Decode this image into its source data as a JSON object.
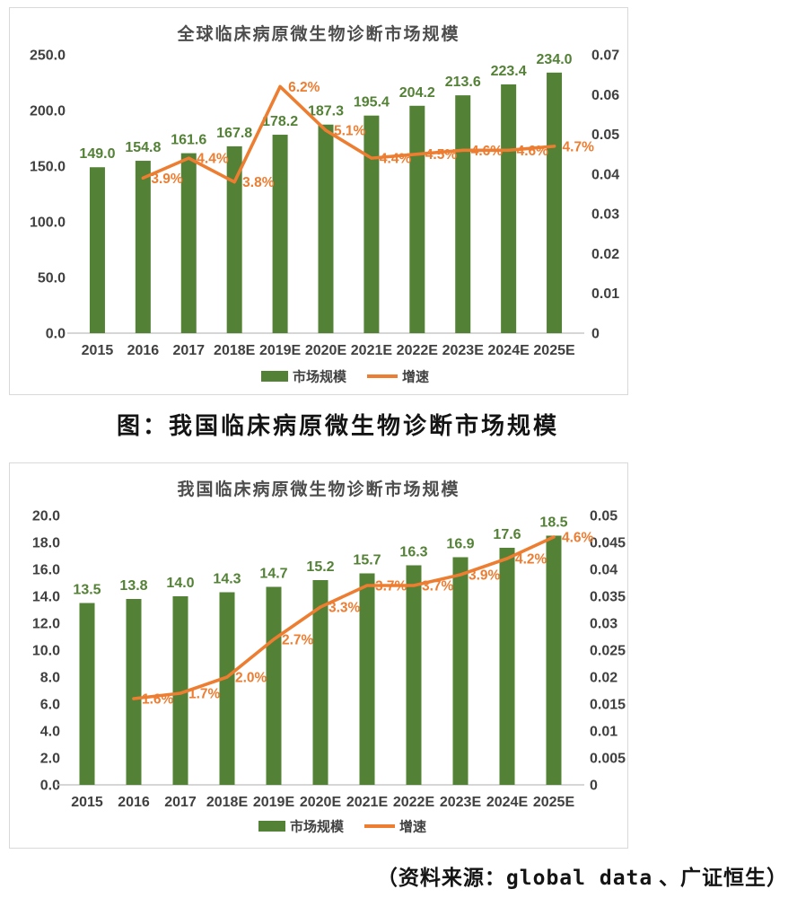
{
  "page": {
    "caption": "图：我国临床病原微生物诊断市场规模",
    "source_parts": {
      "prefix": "（资料来源：",
      "latin": "global data",
      "suffix": " 、广证恒生）"
    }
  },
  "colors": {
    "bar": "#538135",
    "line": "#ED7D31",
    "axis_text": "#404040",
    "border": "#d9d9d9",
    "background": "#ffffff",
    "baseline": "#c9c9c9"
  },
  "chart_data": [
    {
      "type": "bar+line",
      "title": "全球临床病原微生物诊断市场规模",
      "categories": [
        "2015",
        "2016",
        "2017",
        "2018E",
        "2019E",
        "2020E",
        "2021E",
        "2022E",
        "2023E",
        "2024E",
        "2025E"
      ],
      "series": [
        {
          "name": "市场规模",
          "type": "bar",
          "axis": "left",
          "values": [
            149.0,
            154.8,
            161.6,
            167.8,
            178.2,
            187.3,
            195.4,
            204.2,
            213.6,
            223.4,
            234.0
          ],
          "labels": [
            "149.0",
            "154.8",
            "161.6",
            "167.8",
            "178.2",
            "187.3",
            "195.4",
            "204.2",
            "213.6",
            "223.4",
            "234.0"
          ]
        },
        {
          "name": "增速",
          "type": "line",
          "axis": "right",
          "values": [
            null,
            0.039,
            0.044,
            0.038,
            0.062,
            0.051,
            0.044,
            0.045,
            0.046,
            0.046,
            0.047
          ],
          "labels": [
            null,
            "3.9%",
            "4.4%",
            "3.8%",
            "6.2%",
            "5.1%",
            "4.4%",
            "4.5%",
            "4.6%",
            "4.6%",
            "4.7%"
          ]
        }
      ],
      "left_axis": {
        "min": 0,
        "max": 250,
        "ticks": [
          "250.0",
          "200.0",
          "150.0",
          "100.0",
          "50.0",
          "0.0"
        ]
      },
      "right_axis": {
        "min": 0,
        "max": 0.07,
        "ticks": [
          "0.07",
          "0.06",
          "0.05",
          "0.04",
          "0.03",
          "0.02",
          "0.01",
          "0"
        ]
      },
      "grid": false,
      "legend_position": "bottom"
    },
    {
      "type": "bar+line",
      "title": "我国临床病原微生物诊断市场规模",
      "categories": [
        "2015",
        "2016",
        "2017",
        "2018E",
        "2019E",
        "2020E",
        "2021E",
        "2022E",
        "2023E",
        "2024E",
        "2025E"
      ],
      "series": [
        {
          "name": "市场规模",
          "type": "bar",
          "axis": "left",
          "values": [
            13.5,
            13.8,
            14.0,
            14.3,
            14.7,
            15.2,
            15.7,
            16.3,
            16.9,
            17.6,
            18.5
          ],
          "labels": [
            "13.5",
            "13.8",
            "14.0",
            "14.3",
            "14.7",
            "15.2",
            "15.7",
            "16.3",
            "16.9",
            "17.6",
            "18.5"
          ]
        },
        {
          "name": "增速",
          "type": "line",
          "axis": "right",
          "values": [
            null,
            0.016,
            0.017,
            0.02,
            0.027,
            0.033,
            0.037,
            0.037,
            0.039,
            0.042,
            0.046
          ],
          "labels": [
            null,
            "1.6%",
            "1.7%",
            "2.0%",
            "2.7%",
            "3.3%",
            "3.7%",
            "3.7%",
            "3.9%",
            "4.2%",
            "4.6%"
          ]
        }
      ],
      "left_axis": {
        "min": 0,
        "max": 20,
        "ticks": [
          "20.0",
          "18.0",
          "16.0",
          "14.0",
          "12.0",
          "10.0",
          "8.0",
          "6.0",
          "4.0",
          "2.0",
          "0.0"
        ]
      },
      "right_axis": {
        "min": 0,
        "max": 0.05,
        "ticks": [
          "0.05",
          "0.045",
          "0.04",
          "0.035",
          "0.03",
          "0.025",
          "0.02",
          "0.015",
          "0.01",
          "0.005",
          "0"
        ]
      },
      "grid": false,
      "legend_position": "bottom"
    }
  ]
}
